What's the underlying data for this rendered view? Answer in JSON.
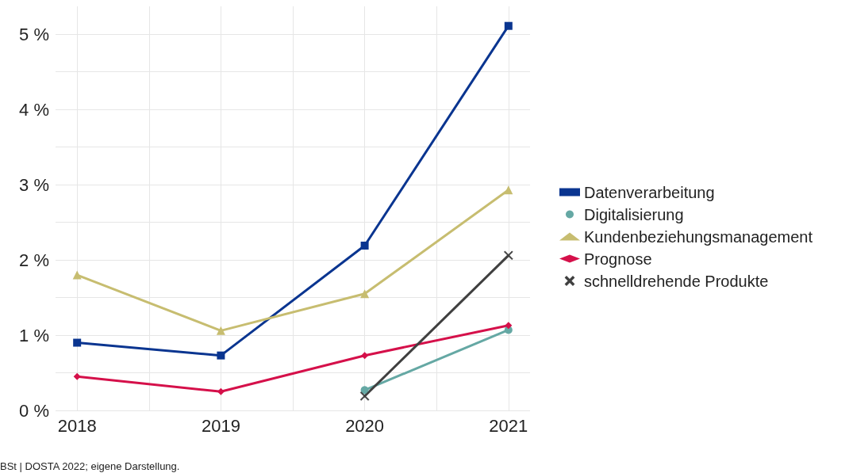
{
  "chart_data": {
    "type": "line",
    "x": [
      2018,
      2019,
      2020,
      2021
    ],
    "series": [
      {
        "name": "Datenverarbeitung",
        "color": "#0a3590",
        "marker": "square",
        "values": [
          0.9,
          0.73,
          2.19,
          5.11
        ]
      },
      {
        "name": "Digitalisierung",
        "color": "#65a8a4",
        "marker": "circle",
        "values": [
          null,
          null,
          0.27,
          1.07
        ]
      },
      {
        "name": "Kundenbeziehungsmanagement",
        "color": "#c7bd70",
        "marker": "triangle",
        "values": [
          1.8,
          1.06,
          1.55,
          2.93
        ]
      },
      {
        "name": "Prognose",
        "color": "#d5104a",
        "marker": "diamond",
        "values": [
          0.45,
          0.25,
          0.73,
          1.13
        ]
      },
      {
        "name": "schnelldrehende Produkte",
        "color": "#404040",
        "marker": "cross",
        "values": [
          null,
          null,
          0.19,
          2.06
        ]
      }
    ],
    "xlim": [
      2017.85,
      2021.15
    ],
    "xticks": [
      2018,
      {
        "value": 2018.5,
        "label": null
      },
      2019,
      {
        "value": 2019.5,
        "label": null
      },
      2020,
      {
        "value": 2020.5,
        "label": null
      },
      2021
    ],
    "ylim": [
      0,
      5.37
    ],
    "yticks": [
      {
        "value": 0,
        "label": "0 %"
      },
      {
        "value": 0.5,
        "label": null
      },
      {
        "value": 1,
        "label": "1 %"
      },
      {
        "value": 1.5,
        "label": null
      },
      {
        "value": 2,
        "label": "2 %"
      },
      {
        "value": 2.5,
        "label": null
      },
      {
        "value": 3,
        "label": "3 %"
      },
      {
        "value": 3.5,
        "label": null
      },
      {
        "value": 4,
        "label": "4 %"
      },
      {
        "value": 4.5,
        "label": null
      },
      {
        "value": 5,
        "label": "5 %"
      }
    ],
    "grid": true,
    "legend": "right",
    "line_style": "solid",
    "annotations": [
      "BSt | DOSTA 2022; eigene Darstellung."
    ]
  }
}
